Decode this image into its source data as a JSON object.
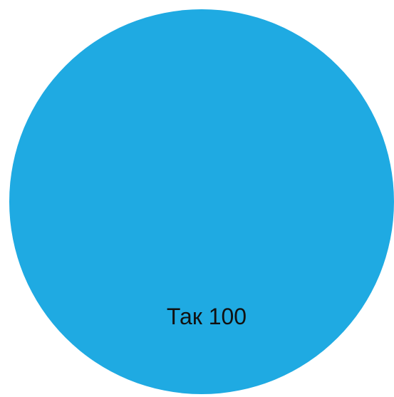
{
  "chart_data": {
    "type": "pie",
    "title": "",
    "slices": [
      {
        "label": "Так",
        "value": 100,
        "display_label": "Так 100",
        "color": "#1faae2"
      }
    ],
    "legend": "none"
  }
}
